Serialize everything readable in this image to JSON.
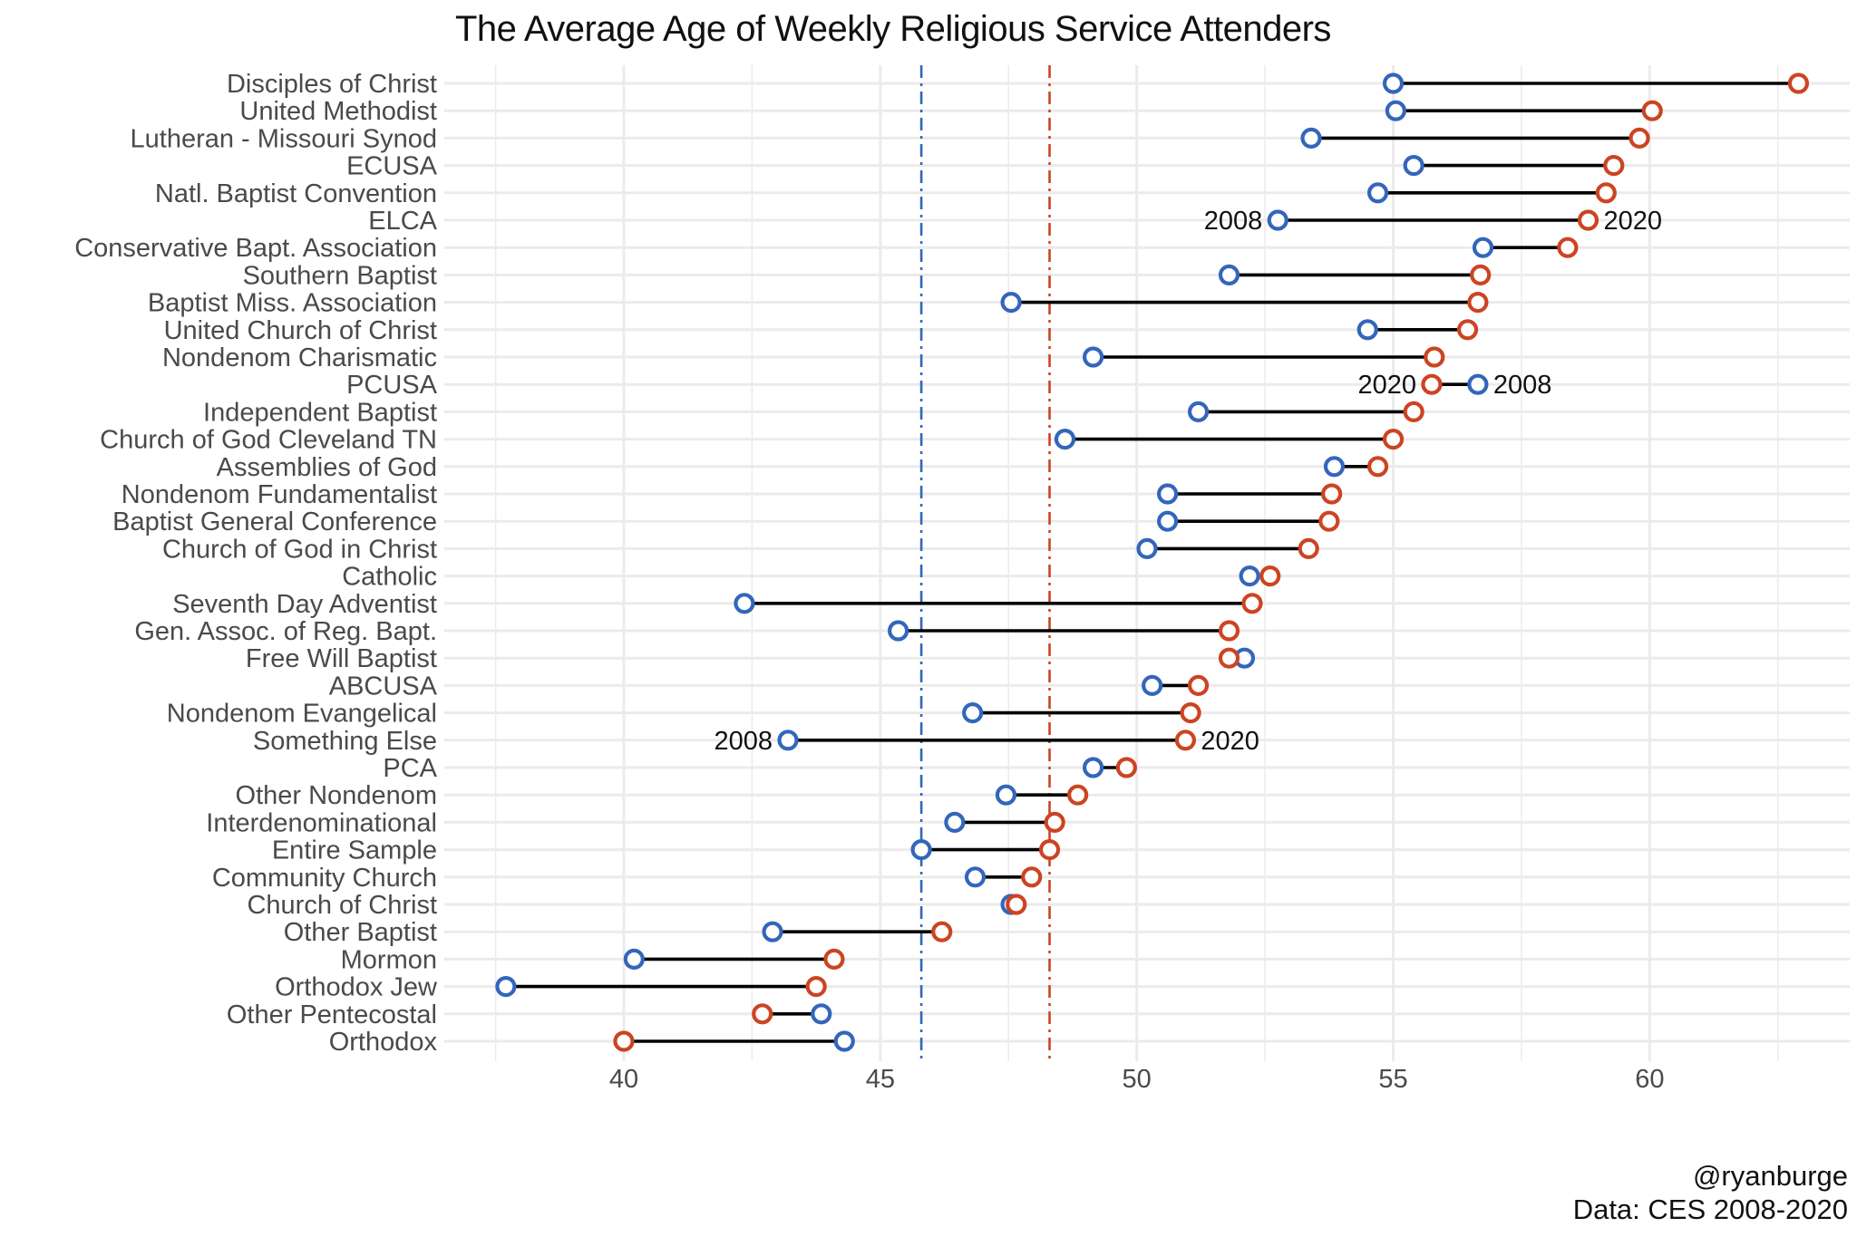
{
  "title": "The Average Age of Weekly Religious Service Attenders",
  "caption": {
    "handle": "@ryanburge",
    "source": "Data: CES 2008-2020"
  },
  "colors": {
    "y2008": "#3366bb",
    "y2020": "#cc4422",
    "segment": "#000000",
    "grid": "#ebebeb"
  },
  "chart_data": {
    "type": "dumbbell",
    "xlim": [
      36.5,
      63.9
    ],
    "x_ticks": [
      40,
      45,
      50,
      55,
      60
    ],
    "grid": true,
    "reference_lines": [
      {
        "value": 45.8,
        "color": "#3366bb",
        "style": "dashdot"
      },
      {
        "value": 48.3,
        "color": "#cc4422",
        "style": "dashdot"
      }
    ],
    "categories": [
      "Disciples of Christ",
      "United Methodist",
      "Lutheran - Missouri Synod",
      "ECUSA",
      "Natl. Baptist Convention",
      "ELCA",
      "Conservative Bapt. Association",
      "Southern Baptist",
      "Baptist Miss. Association",
      "United Church of Christ",
      "Nondenom Charismatic",
      "PCUSA",
      "Independent Baptist",
      "Church of God Cleveland TN",
      "Assemblies of God",
      "Nondenom Fundamentalist",
      "Baptist General Conference",
      "Church of God in Christ",
      "Catholic",
      "Seventh Day Adventist",
      "Gen. Assoc. of Reg. Bapt.",
      "Free Will Baptist",
      "ABCUSA",
      "Nondenom Evangelical",
      "Something Else",
      "PCA",
      "Other Nondenom",
      "Interdenominational",
      "Entire Sample",
      "Community Church",
      "Church of Christ",
      "Other Baptist",
      "Mormon",
      "Orthodox Jew",
      "Other Pentecostal",
      "Orthodox"
    ],
    "series": [
      {
        "name": "2008",
        "values": [
          55.0,
          55.05,
          53.4,
          55.4,
          54.7,
          52.75,
          56.75,
          51.8,
          47.55,
          54.5,
          49.15,
          56.65,
          51.2,
          48.6,
          53.85,
          50.6,
          50.6,
          50.2,
          52.2,
          42.35,
          45.35,
          52.1,
          50.3,
          46.8,
          43.2,
          49.15,
          47.45,
          46.45,
          45.8,
          46.85,
          47.55,
          42.9,
          40.2,
          37.7,
          43.85,
          44.3
        ]
      },
      {
        "name": "2020",
        "values": [
          62.9,
          60.05,
          59.8,
          59.3,
          59.15,
          58.8,
          58.4,
          56.7,
          56.65,
          56.45,
          55.8,
          55.75,
          55.4,
          55.0,
          54.7,
          53.8,
          53.75,
          53.35,
          52.6,
          52.25,
          51.8,
          51.8,
          51.2,
          51.05,
          50.95,
          49.8,
          48.85,
          48.4,
          48.3,
          47.95,
          47.65,
          46.2,
          44.1,
          43.75,
          42.7,
          40.0
        ]
      }
    ],
    "annotations": [
      {
        "category": "ELCA",
        "series": "2008",
        "text": "2008",
        "side": "left"
      },
      {
        "category": "ELCA",
        "series": "2020",
        "text": "2020",
        "side": "right"
      },
      {
        "category": "PCUSA",
        "series": "2020",
        "text": "2020",
        "side": "left"
      },
      {
        "category": "PCUSA",
        "series": "2008",
        "text": "2008",
        "side": "right"
      },
      {
        "category": "Something Else",
        "series": "2008",
        "text": "2008",
        "side": "left"
      },
      {
        "category": "Something Else",
        "series": "2020",
        "text": "2020",
        "side": "right"
      }
    ]
  }
}
